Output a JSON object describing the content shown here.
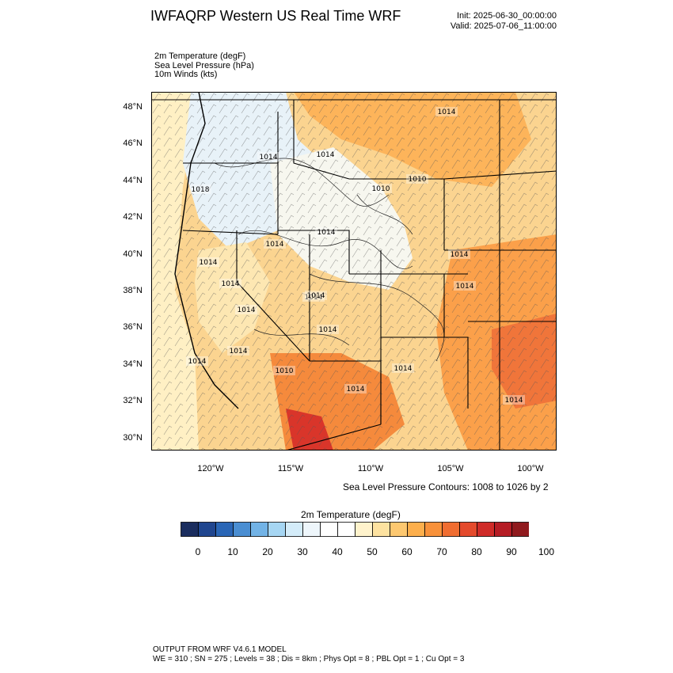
{
  "header": {
    "title": "IWFAQRP Western US Real Time WRF",
    "init": "Init: 2025-06-30_00:00:00",
    "valid": "Valid: 2025-07-06_11:00:00"
  },
  "fields": {
    "line1": "2m Temperature   (degF)",
    "line2": "Sea Level Pressure   (hPa)",
    "line3": "10m Winds   (kts)"
  },
  "map": {
    "lat_labels": [
      "48°N",
      "46°N",
      "44°N",
      "42°N",
      "40°N",
      "38°N",
      "36°N",
      "34°N",
      "32°N",
      "30°N"
    ],
    "lon_labels": [
      "120°W",
      "115°W",
      "110°W",
      "105°W",
      "100°W"
    ],
    "pressure_labels": [
      "1014",
      "1014",
      "1014",
      "1010",
      "1010",
      "1018",
      "1014",
      "1014",
      "1014",
      "1014",
      "1014",
      "1014",
      "1014",
      "1014",
      "1014",
      "1014",
      "1010",
      "1014",
      "1014",
      "1014",
      "1014",
      "1014"
    ],
    "colors": {
      "hot": "#e8613a",
      "warm": "#fdb45a",
      "mild": "#fee9b0",
      "cool": "#e8f2f8"
    }
  },
  "contour_note": "Sea Level Pressure Contours: 1008 to 1026 by 2",
  "colorbar": {
    "title": "2m Temperature  (degF)",
    "labels": [
      "0",
      "10",
      "20",
      "30",
      "40",
      "50",
      "60",
      "70",
      "80",
      "90",
      "100"
    ],
    "colors": [
      "#1a2d5e",
      "#20468f",
      "#2a66b6",
      "#4a8ed2",
      "#72b3e6",
      "#a6d6f3",
      "#d4ecf9",
      "#eef6fb",
      "#ffffff",
      "#ffffff",
      "#fff3cc",
      "#fde2a0",
      "#fdc870",
      "#fdaf4c",
      "#f8913a",
      "#f06d31",
      "#e44a2c",
      "#cf2b28",
      "#b51c24",
      "#901a1e"
    ]
  },
  "footer": {
    "line1": "OUTPUT FROM WRF V4.6.1 MODEL",
    "line2": "WE = 310 ; SN = 275 ; Levels = 38 ; Dis = 8km ; Phys Opt = 8 ; PBL Opt = 1 ; Cu Opt = 3"
  }
}
